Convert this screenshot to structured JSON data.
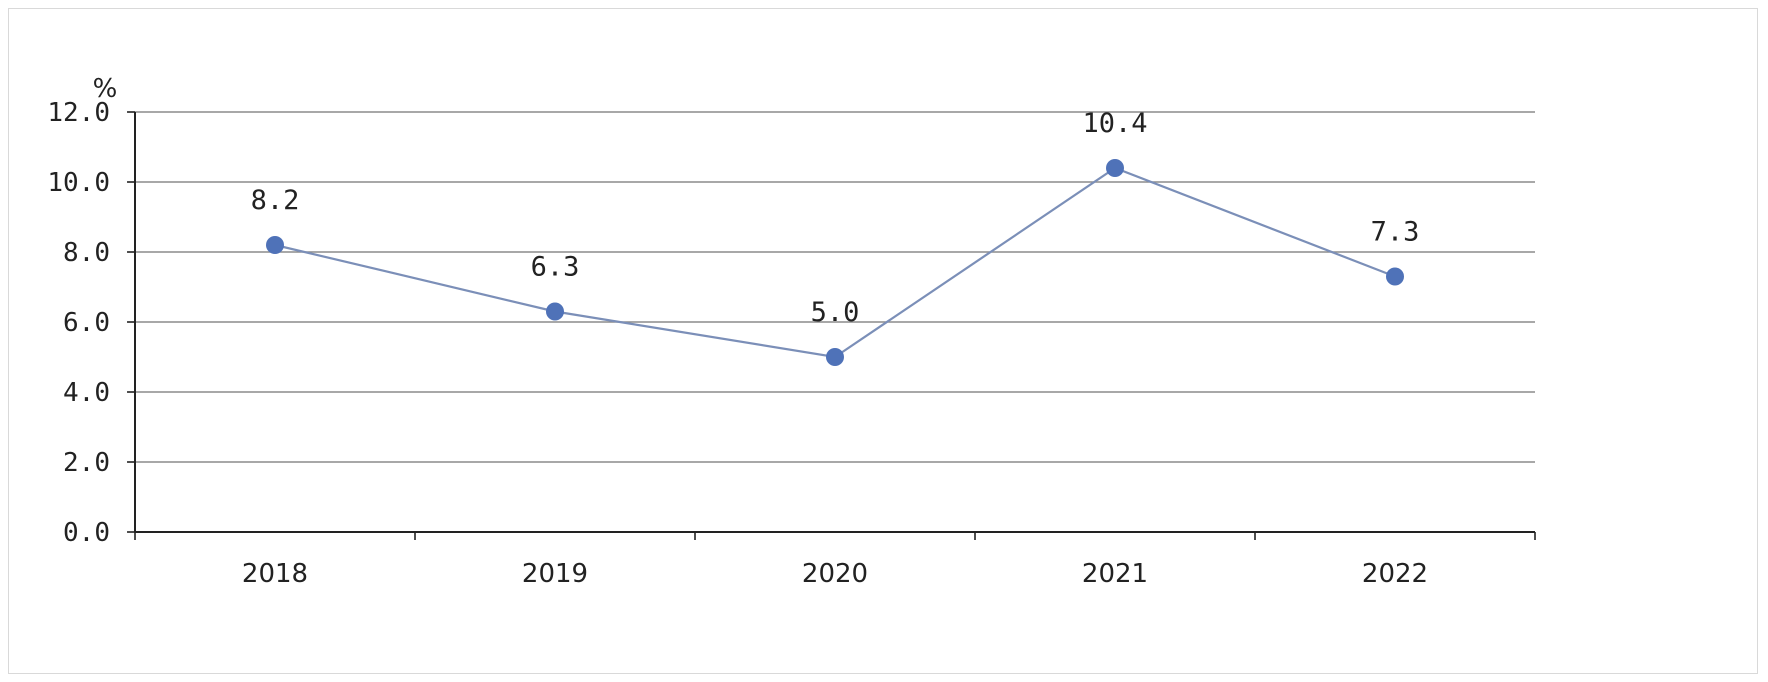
{
  "chart_data": {
    "type": "line",
    "title": "",
    "xlabel": "",
    "ylabel": "%",
    "categories": [
      "2018",
      "2019",
      "2020",
      "2021",
      "2022"
    ],
    "series": [
      {
        "values": [
          8.2,
          6.3,
          5.0,
          10.4,
          7.3
        ]
      }
    ],
    "data_labels": [
      "8.2",
      "6.3",
      "5.0",
      "10.4",
      "7.3"
    ],
    "y_ticks": [
      "0.0",
      "2.0",
      "4.0",
      "6.0",
      "8.0",
      "10.0",
      "12.0"
    ],
    "ylim": [
      0,
      12
    ],
    "grid": true,
    "legend": "none",
    "colors": {
      "line": "#7b8fb8",
      "marker": "#4f72b8",
      "grid": "#8c8c8c",
      "axis": "#222222"
    }
  }
}
